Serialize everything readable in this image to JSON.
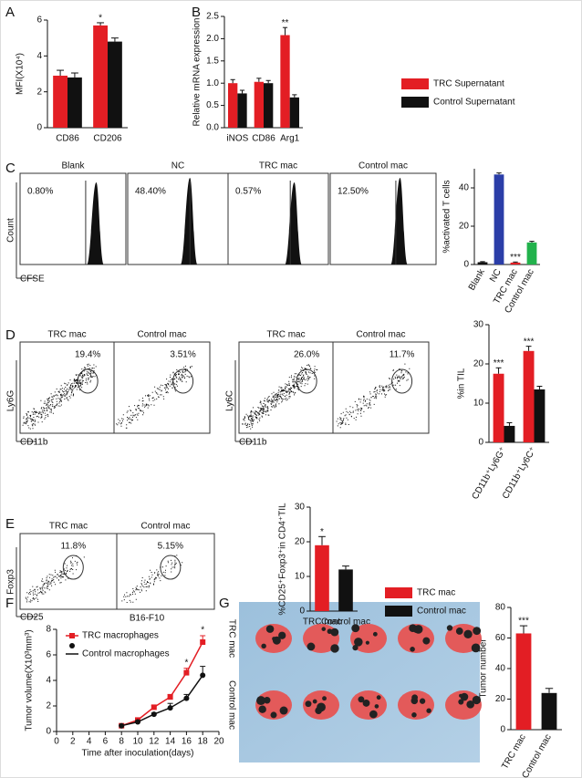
{
  "letters": [
    "A",
    "B",
    "C",
    "D",
    "E",
    "F",
    "G"
  ],
  "flow": {
    "C": {
      "panels": [
        {
          "title": "Blank",
          "percent": "0.80%"
        },
        {
          "title": "NC",
          "percent": "48.40%"
        },
        {
          "title": "TRC mac",
          "percent": "0.57%"
        },
        {
          "title": "Control mac",
          "percent": "12.50%"
        }
      ],
      "y_label": "Count",
      "x_label": "CFSE"
    },
    "D": {
      "panels": [
        {
          "title": "TRC mac",
          "percent": "19.4%"
        },
        {
          "title": "Control mac",
          "percent": "3.51%"
        },
        {
          "title": "TRC mac",
          "percent": "26.0%"
        },
        {
          "title": "Control mac",
          "percent": "11.7%"
        }
      ],
      "axes": [
        {
          "y_label": "Ly6G",
          "x_label": "CD11b"
        },
        {
          "y_label": "Ly6C",
          "x_label": "CD11b"
        }
      ]
    },
    "E": {
      "panels": [
        {
          "title": "TRC mac",
          "percent": "11.8%"
        },
        {
          "title": "Control mac",
          "percent": "5.15%"
        }
      ],
      "y_label": "Foxp3",
      "x_label": "CD25"
    }
  },
  "photo": {
    "row_labels": [
      "TRC mac",
      "Control mac"
    ]
  },
  "chart_data": [
    {
      "type": "bar",
      "y_label": "MFI(X10⁴)",
      "categories": [
        "CD86",
        "CD206"
      ],
      "series": [
        {
          "color": "#e31e24",
          "values": [
            2.9,
            5.7
          ],
          "errors": [
            0.3,
            0.15
          ]
        },
        {
          "color": "#111111",
          "values": [
            2.8,
            4.8
          ],
          "errors": [
            0.25,
            0.2
          ]
        }
      ],
      "ylim": [
        0,
        6
      ],
      "yticks": [
        0,
        2,
        4,
        6
      ],
      "annotations": [
        "*"
      ]
    },
    {
      "type": "bar",
      "y_label": "Relative mRNA expression",
      "categories": [
        "iNOS",
        "CD86",
        "Arg1"
      ],
      "series": [
        {
          "name": "TRC Supernatant",
          "color": "#e31e24",
          "values": [
            1.0,
            1.03,
            2.08
          ],
          "errors": [
            0.08,
            0.08,
            0.17
          ]
        },
        {
          "name": "Control Supernatant",
          "color": "#111111",
          "values": [
            0.77,
            1.0,
            0.68
          ],
          "errors": [
            0.07,
            0.06,
            0.06
          ]
        }
      ],
      "ylim": [
        0,
        2.5
      ],
      "yticks": [
        {
          "value": 0,
          "label": "0.0"
        },
        {
          "value": 0.5,
          "label": "0.5"
        },
        {
          "value": 1,
          "label": "1.0"
        },
        {
          "value": 1.5,
          "label": "1.5"
        },
        {
          "value": 2,
          "label": "2.0"
        },
        {
          "value": 2.5,
          "label": "2.5"
        }
      ],
      "annotations": [
        "**"
      ]
    },
    {
      "type": "bar",
      "y_label": "%activated T cells",
      "categories": [
        "Blank",
        "NC",
        "TRC mac",
        "Control mac"
      ],
      "series": [
        {
          "colors": [
            "#111111",
            "#2b3ea8",
            "#e31e24",
            "#22b24c"
          ],
          "values": [
            1.2,
            47,
            1,
            11.5
          ],
          "errors": [
            0.3,
            0.8,
            0.3,
            0.6
          ]
        }
      ],
      "ylim": [
        0,
        50
      ],
      "yticks": [
        0,
        20,
        40
      ],
      "annotations": [
        "***"
      ]
    },
    {
      "type": "bar",
      "y_label": "%in TIL",
      "categories": [
        "CD11b⁺Ly6G⁺",
        "CD11b⁺Ly6C⁺"
      ],
      "series": [
        {
          "color": "#e31e24",
          "values": [
            17.5,
            23.3
          ],
          "errors": [
            1.5,
            1.2
          ]
        },
        {
          "color": "#111111",
          "values": [
            4.2,
            13.5
          ],
          "errors": [
            0.8,
            0.8
          ]
        }
      ],
      "ylim": [
        0,
        30
      ],
      "yticks": [
        0,
        10,
        20,
        30
      ],
      "annotations": [
        "***",
        "***"
      ]
    },
    {
      "type": "bar",
      "y_label": "%CD25⁺Foxp3⁺in CD4⁺TIL",
      "categories": [
        "TRC mac",
        "Control mac"
      ],
      "series": [
        {
          "name": "TRC mac",
          "color": "#e31e24",
          "values": [
            19,
            null
          ],
          "errors": [
            2.5,
            null
          ]
        },
        {
          "name": "Control mac",
          "color": "#111111",
          "values": [
            null,
            12
          ],
          "errors": [
            null,
            1
          ]
        }
      ],
      "ylim": [
        0,
        30
      ],
      "yticks": [
        0,
        10,
        20,
        30
      ],
      "annotations": [
        "*"
      ]
    },
    {
      "type": "line",
      "title": "B16-F10",
      "y_label": "Tumor volume(X10³mm³)",
      "x_label": "Time after inoculation(days)",
      "x": [
        8,
        10,
        12,
        14,
        16,
        18
      ],
      "series": [
        {
          "name": "TRC macrophages",
          "color": "#e31e24",
          "marker": "square",
          "values": [
            0.45,
            0.9,
            1.9,
            2.7,
            4.6,
            7.0
          ],
          "errors": [
            0.05,
            0.1,
            0.15,
            0.2,
            0.35,
            0.5
          ]
        },
        {
          "name": "Control macrophages",
          "color": "#111111",
          "marker": "circle",
          "values": [
            0.45,
            0.75,
            1.35,
            1.85,
            2.6,
            4.4
          ],
          "errors": [
            0.05,
            0.1,
            0.1,
            0.35,
            0.3,
            0.7
          ]
        }
      ],
      "xlim": [
        0,
        20
      ],
      "xticks": [
        0,
        2,
        4,
        6,
        8,
        10,
        12,
        14,
        16,
        18,
        20
      ],
      "ylim": [
        0,
        8
      ],
      "yticks": [
        0,
        2,
        4,
        6,
        8
      ],
      "annotations": [
        "*",
        "*"
      ]
    },
    {
      "type": "bar",
      "y_label": "Tumor number",
      "categories": [
        "TRC mac",
        "Control mac"
      ],
      "series": [
        {
          "colors": [
            "#e31e24",
            "#111111"
          ],
          "values": [
            63,
            24
          ],
          "errors": [
            5,
            3
          ]
        }
      ],
      "ylim": [
        0,
        80
      ],
      "yticks": [
        0,
        20,
        40,
        60,
        80
      ],
      "annotations": [
        "***"
      ]
    }
  ]
}
